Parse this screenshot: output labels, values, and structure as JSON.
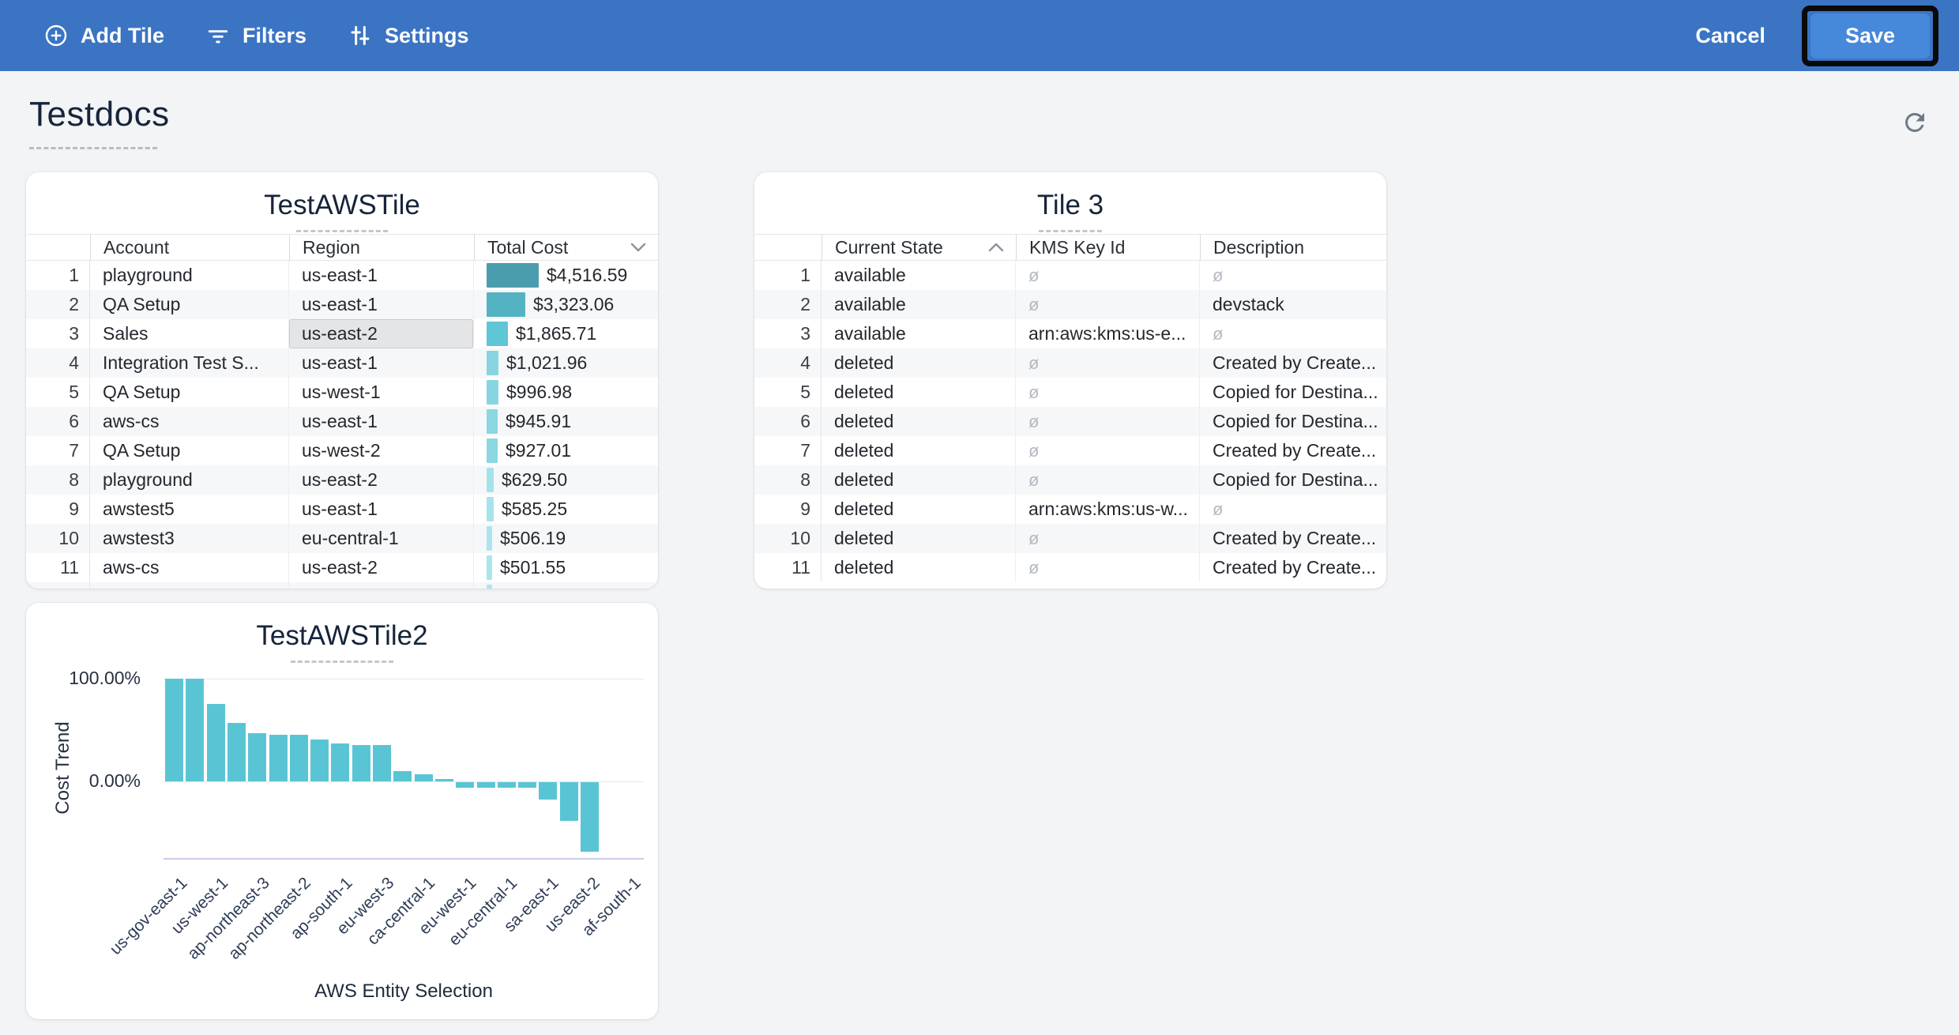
{
  "toolbar": {
    "add_tile_label": "Add Tile",
    "filters_label": "Filters",
    "settings_label": "Settings",
    "cancel_label": "Cancel",
    "save_label": "Save",
    "bar_color": "#3b74c3",
    "save_button_color": "#4688d9"
  },
  "page": {
    "title": "Testdocs"
  },
  "null_symbol": "ø",
  "tile1": {
    "title": "TestAWSTile",
    "columns": [
      "Account",
      "Region",
      "Total Cost"
    ],
    "sort": {
      "column": "Total Cost",
      "direction": "desc"
    },
    "rows": [
      {
        "n": 1,
        "account": "playground",
        "region": "us-east-1",
        "cost": 4516.59,
        "cost_label": "$4,516.59",
        "bar_color": "#4a9dad"
      },
      {
        "n": 2,
        "account": "QA Setup",
        "region": "us-east-1",
        "cost": 3323.06,
        "cost_label": "$3,323.06",
        "bar_color": "#54b3c3"
      },
      {
        "n": 3,
        "account": "Sales",
        "region": "us-east-2",
        "cost": 1865.71,
        "cost_label": "$1,865.71",
        "bar_color": "#5fc6d6",
        "region_selected": true
      },
      {
        "n": 4,
        "account": "Integration Test S...",
        "region": "us-east-1",
        "cost": 1021.96,
        "cost_label": "$1,021.96",
        "bar_color": "#87d5e1"
      },
      {
        "n": 5,
        "account": "QA Setup",
        "region": "us-west-1",
        "cost": 996.98,
        "cost_label": "$996.98",
        "bar_color": "#87d5e1"
      },
      {
        "n": 6,
        "account": "aws-cs",
        "region": "us-east-1",
        "cost": 945.91,
        "cost_label": "$945.91",
        "bar_color": "#8bd7e2"
      },
      {
        "n": 7,
        "account": "QA Setup",
        "region": "us-west-2",
        "cost": 927.01,
        "cost_label": "$927.01",
        "bar_color": "#8bd7e2"
      },
      {
        "n": 8,
        "account": "playground",
        "region": "us-east-2",
        "cost": 629.5,
        "cost_label": "$629.50",
        "bar_color": "#a3e2eb"
      },
      {
        "n": 9,
        "account": "awstest5",
        "region": "us-east-1",
        "cost": 585.25,
        "cost_label": "$585.25",
        "bar_color": "#a6e3ec"
      },
      {
        "n": 10,
        "account": "awstest3",
        "region": "eu-central-1",
        "cost": 506.19,
        "cost_label": "$506.19",
        "bar_color": "#abe5ee"
      },
      {
        "n": 11,
        "account": "aws-cs",
        "region": "us-east-2",
        "cost": 501.55,
        "cost_label": "$501.55",
        "bar_color": "#abe5ee"
      }
    ],
    "partial_row_bar_color": "#ade6ee"
  },
  "tile3": {
    "title": "Tile 3",
    "columns": [
      "Current State",
      "KMS Key Id",
      "Description"
    ],
    "sort": {
      "column": "Current State",
      "direction": "asc"
    },
    "rows": [
      {
        "n": 1,
        "state": "available",
        "kms": null,
        "desc": null
      },
      {
        "n": 2,
        "state": "available",
        "kms": null,
        "desc": "devstack"
      },
      {
        "n": 3,
        "state": "available",
        "kms": "arn:aws:kms:us-e...",
        "desc": null
      },
      {
        "n": 4,
        "state": "deleted",
        "kms": null,
        "desc": "Created by Create..."
      },
      {
        "n": 5,
        "state": "deleted",
        "kms": null,
        "desc": "Copied for Destina..."
      },
      {
        "n": 6,
        "state": "deleted",
        "kms": null,
        "desc": "Copied for Destina..."
      },
      {
        "n": 7,
        "state": "deleted",
        "kms": null,
        "desc": "Created by Create..."
      },
      {
        "n": 8,
        "state": "deleted",
        "kms": null,
        "desc": "Copied for Destina..."
      },
      {
        "n": 9,
        "state": "deleted",
        "kms": "arn:aws:kms:us-w...",
        "desc": null
      },
      {
        "n": 10,
        "state": "deleted",
        "kms": null,
        "desc": "Created by Create..."
      },
      {
        "n": 11,
        "state": "deleted",
        "kms": null,
        "desc": "Created by Create..."
      }
    ]
  },
  "chart_data": {
    "type": "bar",
    "title": "TestAWSTile2",
    "xlabel": "AWS Entity Selection",
    "ylabel": "Cost Trend",
    "yticks": [
      "100.00%",
      "0.00%"
    ],
    "ylim": [
      -78,
      100
    ],
    "grid": true,
    "legend": false,
    "bar_color": "#59c5d4",
    "values": [
      100,
      100,
      75,
      57,
      47,
      45,
      45,
      41,
      37,
      35,
      35,
      10,
      7,
      2,
      -5,
      -5,
      -5,
      -5,
      -17,
      -38,
      -68
    ],
    "x_tick_labels": [
      "us-gov-east-1",
      "us-west-1",
      "ap-northeast-3",
      "ap-northeast-2",
      "ap-south-1",
      "eu-west-3",
      "ca-central-1",
      "eu-west-1",
      "eu-central-1",
      "sa-east-1",
      "us-east-2",
      "af-south-1"
    ]
  }
}
